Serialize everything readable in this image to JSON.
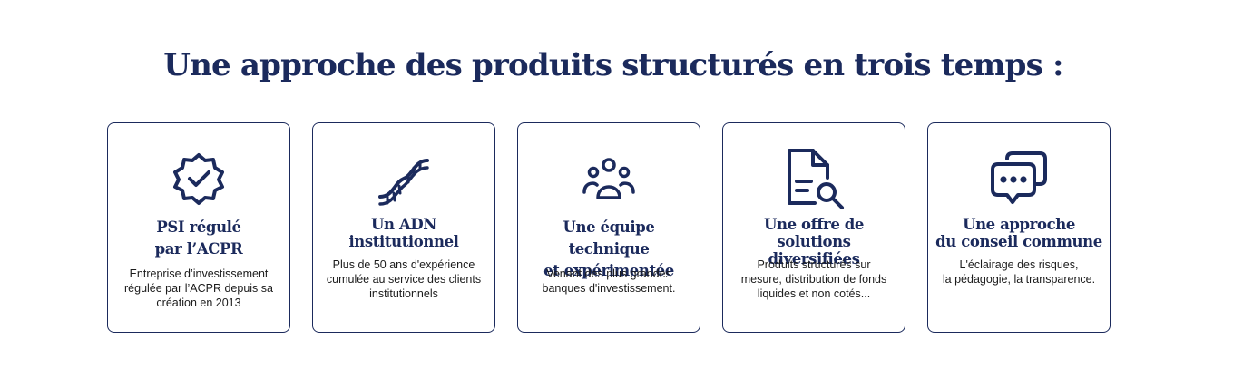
{
  "heading": "Une approche des produits structurés en trois temps :",
  "colors": {
    "primary": "#1b2a5c",
    "text": "#1b1b1b",
    "background": "#ffffff"
  },
  "cards": [
    {
      "icon": "certified-badge-icon",
      "title": "PSI régulé\npar l’ACPR",
      "description": "Entreprise d’investissement\nrégulée par l’ACPR depuis sa\ncréation en 2013"
    },
    {
      "icon": "dna-icon",
      "title": "Un ADN\ninstitutionnel",
      "description": "Plus de 50 ans d'expérience\ncumulée au service des clients\ninstitutionnels"
    },
    {
      "icon": "team-icon",
      "title": "Une équipe technique\net expérimentée",
      "description": "Venant des plus grandes\nbanques d'investissement."
    },
    {
      "icon": "document-search-icon",
      "title": "Une offre de solutions\ndiversifiées",
      "description": "Produits structurés sur\nmesure, distribution de fonds\nliquides et non cotés..."
    },
    {
      "icon": "chat-bubbles-icon",
      "title": "Une approche\ndu conseil commune",
      "description": "L'éclairage des risques,\nla pédagogie, la transparence."
    }
  ]
}
